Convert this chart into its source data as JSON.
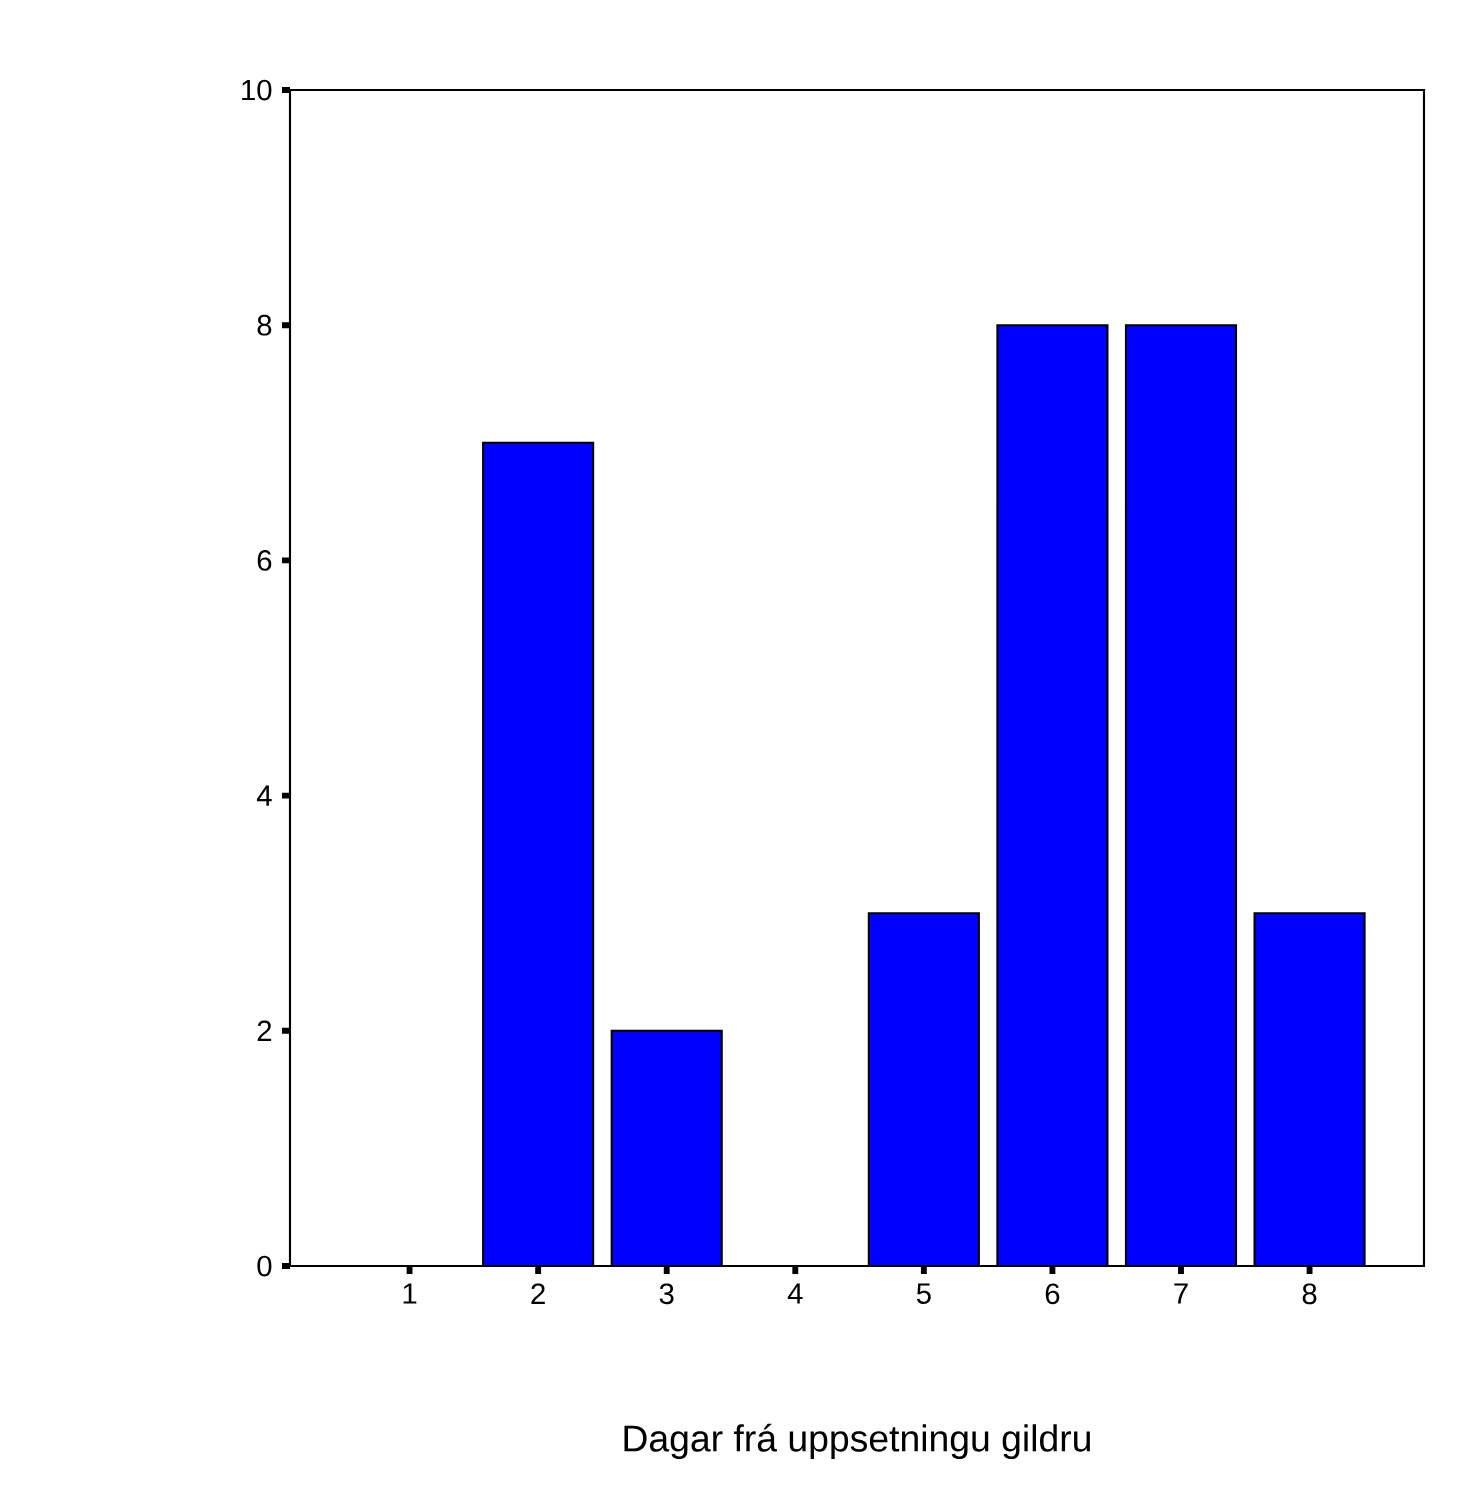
{
  "chart_data": {
    "type": "bar",
    "xlabel": "Dagar frá uppsetningu gildru",
    "categories": [
      "1",
      "2",
      "3",
      "4",
      "5",
      "6",
      "7",
      "8"
    ],
    "values": [
      0,
      7,
      2,
      0,
      3,
      8,
      8,
      3
    ],
    "color": "#0000ff",
    "ylim": [
      0,
      10
    ],
    "yticks": [
      0,
      2,
      4,
      6,
      8,
      10
    ],
    "grid": false
  }
}
